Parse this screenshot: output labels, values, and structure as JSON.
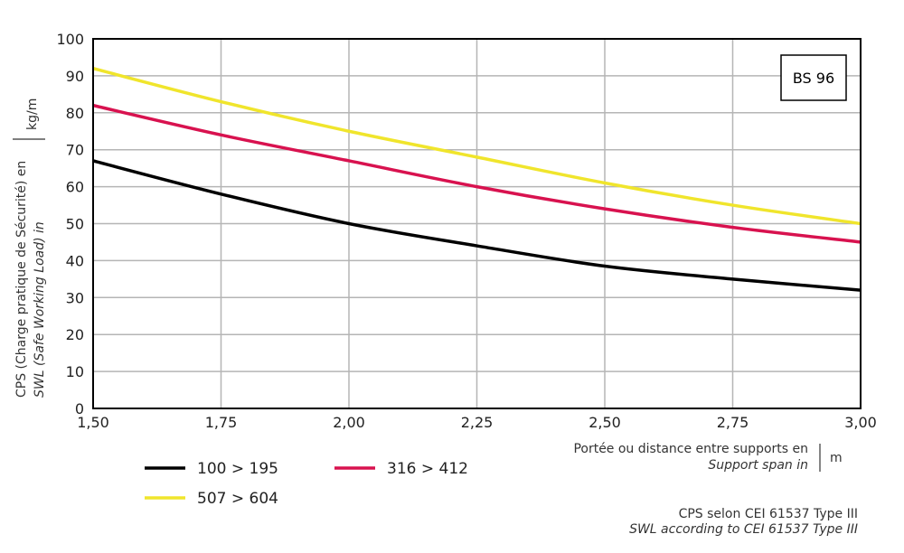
{
  "chart_data": {
    "type": "line",
    "badge": "BS 96",
    "ylabel": {
      "line1": "CPS (Charge pratique de Sécurité) en",
      "line2": "SWL (Safe Working Load) in",
      "unit": "kg/m"
    },
    "xlabel": {
      "line1": "Portée ou distance entre supports en",
      "line2": "Support span in",
      "unit": "m"
    },
    "note": {
      "line1": "CPS selon CEI 61537 Type III",
      "line2": "SWL according to CEI 61537 Type III"
    },
    "xlim": [
      1.5,
      3.0
    ],
    "ylim": [
      0,
      100
    ],
    "x": [
      1.5,
      1.75,
      2.0,
      2.25,
      2.5,
      2.75,
      3.0
    ],
    "x_tick_labels": [
      "1,50",
      "1,75",
      "2,00",
      "2,25",
      "2,50",
      "2,75",
      "3,00"
    ],
    "y_ticks": [
      0,
      10,
      20,
      30,
      40,
      50,
      60,
      70,
      80,
      90,
      100
    ],
    "grid": true,
    "legend_placement": "bottom-left",
    "series": [
      {
        "name": "100 > 195",
        "color": "#000000",
        "values": [
          67,
          58,
          50,
          44,
          38.5,
          35,
          32
        ]
      },
      {
        "name": "316 > 412",
        "color": "#d8124f",
        "values": [
          82,
          74,
          67,
          60,
          54,
          49,
          45
        ]
      },
      {
        "name": "507 > 604",
        "color": "#f0e52c",
        "values": [
          92,
          83,
          75,
          68,
          61,
          55,
          50
        ]
      }
    ]
  }
}
